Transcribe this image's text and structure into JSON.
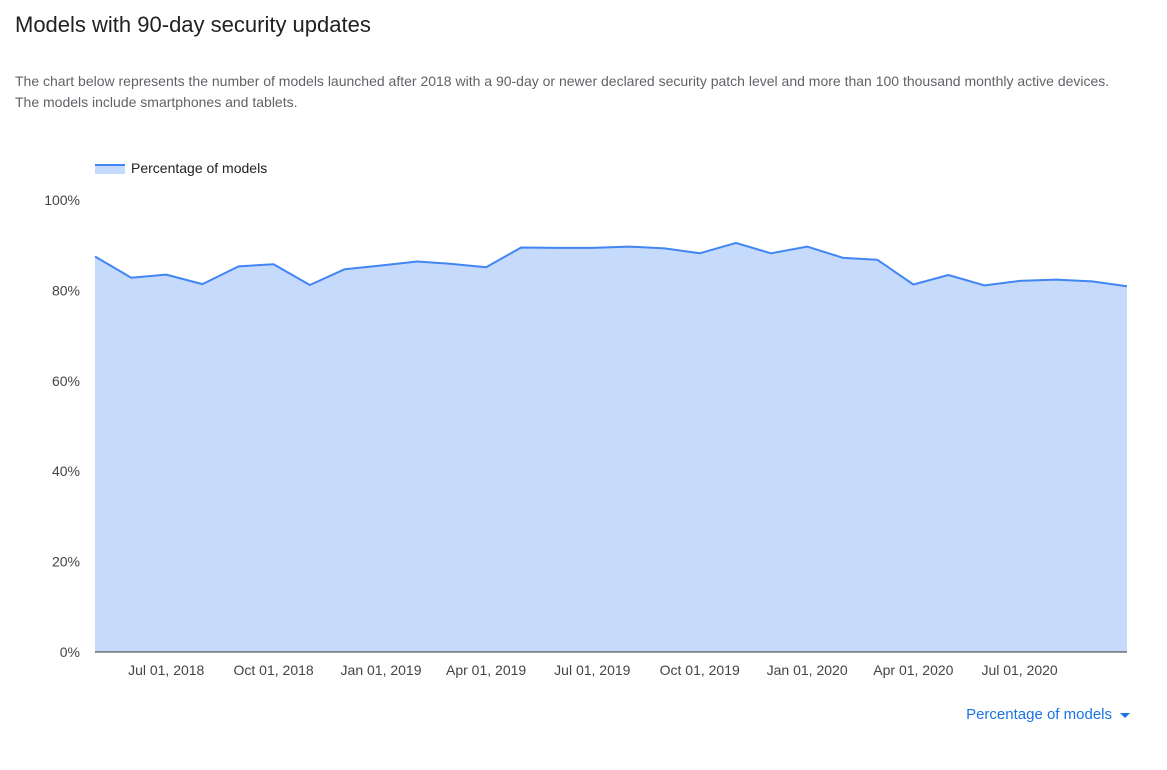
{
  "page": {
    "title": "Models with 90-day security updates",
    "description": "The chart below represents the number of models launched after 2018 with a 90-day or newer declared security patch level and more than 100 thousand monthly active devices. The models include smartphones and tablets."
  },
  "metric_selector": {
    "label": "Percentage of models",
    "icon": "caret-down-icon"
  },
  "colors": {
    "line": "#4285f4",
    "area": "#c6dafb",
    "link": "#1a73e8"
  },
  "chart_data": {
    "type": "area",
    "legend": {
      "label": "Percentage of models",
      "position": "top-left"
    },
    "xlabel": "",
    "ylabel": "",
    "ylim": [
      0,
      100
    ],
    "y_ticks": [
      "100%",
      "80%",
      "60%",
      "40%",
      "20%",
      "0%"
    ],
    "y_tick_values": [
      100,
      80,
      60,
      40,
      20,
      0
    ],
    "x_tick_labels": [
      "Jul 01, 2018",
      "Oct 01, 2018",
      "Jan 01, 2019",
      "Apr 01, 2019",
      "Jul 01, 2019",
      "Oct 01, 2019",
      "Jan 01, 2020",
      "Apr 01, 2020",
      "Jul 01, 2020"
    ],
    "x_tick_dates": [
      "2018-07-01",
      "2018-10-01",
      "2019-01-01",
      "2019-04-01",
      "2019-07-01",
      "2019-10-01",
      "2020-01-01",
      "2020-04-01",
      "2020-07-01"
    ],
    "grid": false,
    "series": [
      {
        "name": "Percentage of models",
        "x": [
          "2018-05-01",
          "2018-06-01",
          "2018-07-01",
          "2018-08-01",
          "2018-09-01",
          "2018-10-01",
          "2018-11-01",
          "2018-12-01",
          "2019-01-01",
          "2019-02-01",
          "2019-03-01",
          "2019-04-01",
          "2019-05-01",
          "2019-06-01",
          "2019-07-01",
          "2019-08-01",
          "2019-09-01",
          "2019-10-01",
          "2019-11-01",
          "2019-12-01",
          "2020-01-01",
          "2020-02-01",
          "2020-03-01",
          "2020-04-01",
          "2020-05-01",
          "2020-06-01",
          "2020-07-01",
          "2020-08-01",
          "2020-09-01",
          "2020-10-01"
        ],
        "values": [
          87.5,
          82.8,
          83.5,
          81.4,
          85.3,
          85.8,
          81.2,
          84.7,
          85.5,
          86.4,
          85.9,
          85.1,
          89.5,
          89.4,
          89.4,
          89.7,
          89.3,
          88.2,
          90.5,
          88.2,
          89.7,
          87.2,
          86.8,
          81.3,
          83.4,
          81.1,
          82.1,
          82.4,
          82.0,
          80.9
        ]
      }
    ]
  }
}
